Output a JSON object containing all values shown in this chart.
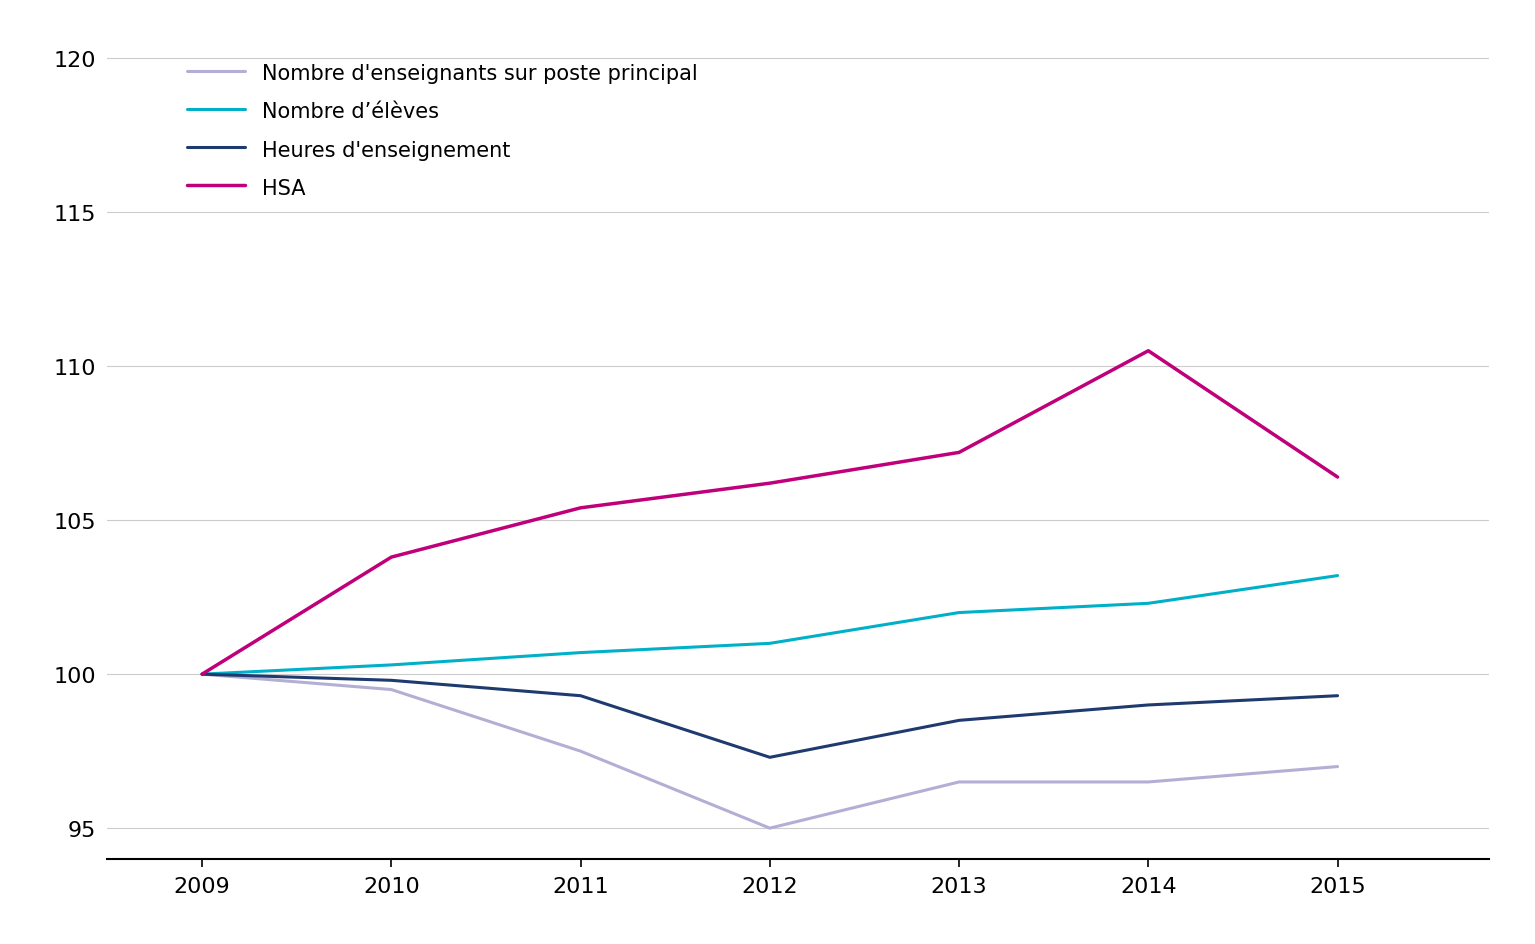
{
  "years": [
    2009,
    2010,
    2011,
    2012,
    2013,
    2014,
    2015
  ],
  "series": {
    "Nombre d'enseignants sur poste principal": {
      "values": [
        100,
        99.5,
        97.5,
        95.0,
        96.5,
        96.5,
        97.0
      ],
      "color": "#b3afd4",
      "linewidth": 2.2
    },
    "Nombre d’élèves": {
      "values": [
        100,
        100.3,
        100.7,
        101.0,
        102.0,
        102.3,
        103.2
      ],
      "color": "#00b0c8",
      "linewidth": 2.2
    },
    "Heures d'enseignement": {
      "values": [
        100,
        99.8,
        99.3,
        97.3,
        98.5,
        99.0,
        99.3
      ],
      "color": "#1f3a6e",
      "linewidth": 2.2
    },
    "HSA": {
      "values": [
        100,
        103.8,
        105.4,
        106.2,
        107.2,
        110.5,
        106.4
      ],
      "color": "#c0007a",
      "linewidth": 2.5
    }
  },
  "ylim": [
    94,
    121
  ],
  "yticks": [
    95,
    100,
    105,
    110,
    115,
    120
  ],
  "xlim": [
    2008.5,
    2015.8
  ],
  "xticks": [
    2009,
    2010,
    2011,
    2012,
    2013,
    2014,
    2015
  ],
  "background_color": "#ffffff",
  "grid_color": "#cccccc",
  "legend_order": [
    "Nombre d'enseignants sur poste principal",
    "Nombre d’élèves",
    "Heures d'enseignement",
    "HSA"
  ],
  "tick_fontsize": 16,
  "legend_fontsize": 15
}
